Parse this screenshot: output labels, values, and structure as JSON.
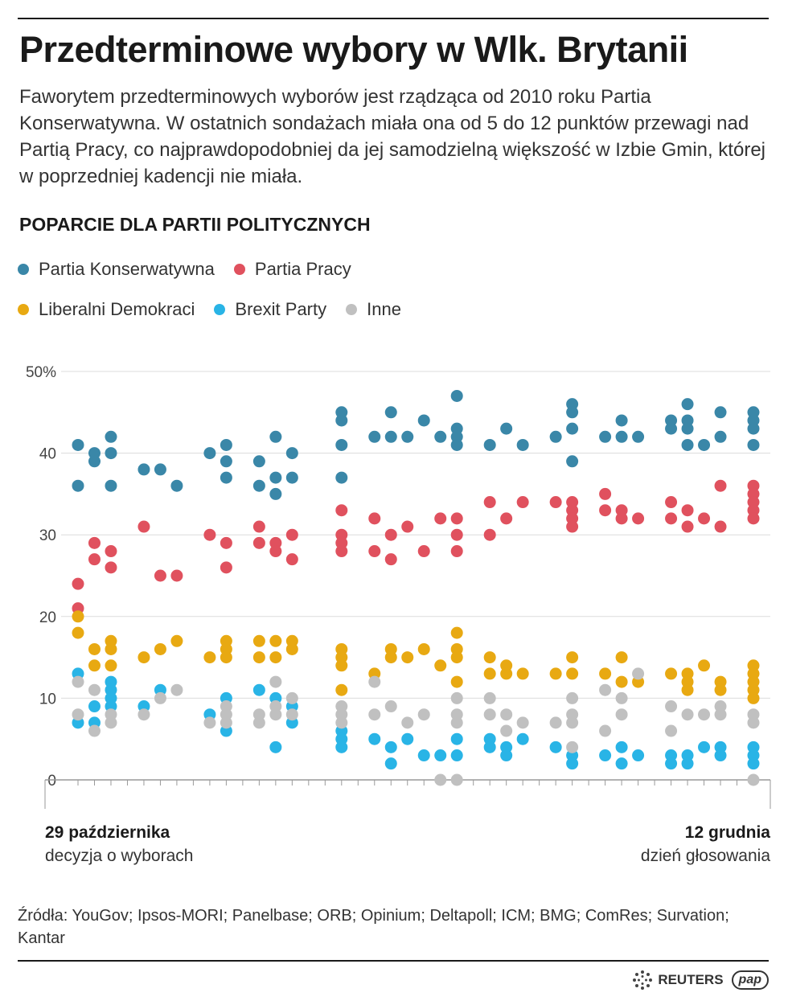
{
  "header": {
    "title": "Przedterminowe wybory w Wlk. Brytanii",
    "lead": "Faworytem przedterminowych wyborów jest rządząca od 2010 roku Partia Konserwatywna. W ostatnich sondażach miała ona od 5 do 12 punktów przewagi nad Partią Pracy, co najprawdopodobniej da jej samodzielną większość w Izbie Gmin, której w poprzedniej kadencji nie miała."
  },
  "colors": {
    "con": "#3a87a8",
    "lab": "#e0515e",
    "ld": "#e8a912",
    "brx": "#29b4e6",
    "oth": "#c0c0c0"
  },
  "chart_data": {
    "type": "scatter",
    "title": "POPARCIE DLA PARTII POLITYCZNYCH",
    "xlabel": "",
    "ylabel": "%",
    "ylim": [
      0,
      50
    ],
    "yticks": [
      "0",
      "10",
      "20",
      "30",
      "40",
      "50%"
    ],
    "grid": true,
    "legend_position": "top-left",
    "series_order": [
      "con",
      "lab",
      "ld",
      "brx",
      "oth"
    ],
    "legend": [
      {
        "key": "con",
        "label": "Partia Konserwatywna"
      },
      {
        "key": "lab",
        "label": "Partia Pracy"
      },
      {
        "key": "ld",
        "label": "Liberalni Demokraci"
      },
      {
        "key": "brx",
        "label": "Brexit Party"
      },
      {
        "key": "oth",
        "label": "Inne"
      }
    ],
    "x_start_label": "29 października",
    "x_start_note": "decyzja o wyborach",
    "x_end_label": "12 grudnia",
    "x_end_note": "dzień głosowania",
    "day_count": 43,
    "days": [
      {
        "day": 2,
        "con": [
          41,
          36
        ],
        "lab": [
          24,
          21
        ],
        "ld": [
          20,
          18
        ],
        "brx": [
          13,
          7
        ],
        "oth": [
          12,
          8
        ]
      },
      {
        "day": 3,
        "con": [
          40,
          39
        ],
        "lab": [
          29,
          27
        ],
        "ld": [
          16,
          14
        ],
        "brx": [
          9,
          7
        ],
        "oth": [
          11,
          6
        ]
      },
      {
        "day": 4,
        "con": [
          42,
          40,
          36
        ],
        "lab": [
          28,
          26
        ],
        "ld": [
          17,
          16,
          14
        ],
        "brx": [
          12,
          11,
          10,
          9
        ],
        "oth": [
          8,
          7
        ]
      },
      {
        "day": 6,
        "con": [
          38
        ],
        "lab": [
          31
        ],
        "ld": [
          15
        ],
        "brx": [
          9
        ],
        "oth": [
          8
        ]
      },
      {
        "day": 7,
        "con": [
          38
        ],
        "lab": [
          25
        ],
        "ld": [
          16
        ],
        "brx": [
          11
        ],
        "oth": [
          10
        ]
      },
      {
        "day": 8,
        "con": [
          36
        ],
        "lab": [
          25
        ],
        "ld": [
          17
        ],
        "brx": [],
        "oth": [
          11
        ]
      },
      {
        "day": 10,
        "con": [
          40
        ],
        "lab": [
          30
        ],
        "ld": [
          15
        ],
        "brx": [
          8
        ],
        "oth": [
          7
        ]
      },
      {
        "day": 11,
        "con": [
          41,
          39,
          37
        ],
        "lab": [
          29,
          26
        ],
        "ld": [
          17,
          16,
          15
        ],
        "brx": [
          10,
          6
        ],
        "oth": [
          9,
          8,
          7
        ]
      },
      {
        "day": 13,
        "con": [
          39,
          36
        ],
        "lab": [
          31,
          29
        ],
        "ld": [
          17,
          15
        ],
        "brx": [
          11
        ],
        "oth": [
          8,
          7
        ]
      },
      {
        "day": 14,
        "con": [
          42,
          37,
          35
        ],
        "lab": [
          29,
          28
        ],
        "ld": [
          17,
          15
        ],
        "brx": [
          10,
          4
        ],
        "oth": [
          12,
          9,
          8
        ]
      },
      {
        "day": 15,
        "con": [
          40,
          37
        ],
        "lab": [
          30,
          27
        ],
        "ld": [
          17,
          16
        ],
        "brx": [
          9,
          7
        ],
        "oth": [
          10,
          8
        ]
      },
      {
        "day": 18,
        "con": [
          45,
          44,
          41,
          37
        ],
        "lab": [
          33,
          30,
          29,
          28
        ],
        "ld": [
          16,
          15,
          14,
          11
        ],
        "brx": [
          6,
          5,
          4
        ],
        "oth": [
          9,
          8,
          7
        ]
      },
      {
        "day": 20,
        "con": [
          42
        ],
        "lab": [
          32,
          28
        ],
        "ld": [
          13
        ],
        "brx": [
          5
        ],
        "oth": [
          12,
          8
        ]
      },
      {
        "day": 21,
        "con": [
          45,
          42
        ],
        "lab": [
          30,
          27
        ],
        "ld": [
          16,
          15
        ],
        "brx": [
          4,
          2
        ],
        "oth": [
          9
        ]
      },
      {
        "day": 22,
        "con": [
          42
        ],
        "lab": [
          31
        ],
        "ld": [
          15
        ],
        "brx": [
          5
        ],
        "oth": [
          7
        ]
      },
      {
        "day": 23,
        "con": [
          44
        ],
        "lab": [
          28
        ],
        "ld": [
          16
        ],
        "brx": [
          3
        ],
        "oth": [
          8
        ]
      },
      {
        "day": 24,
        "con": [
          42
        ],
        "lab": [
          32
        ],
        "ld": [
          14
        ],
        "brx": [
          3
        ],
        "oth": [
          0
        ]
      },
      {
        "day": 25,
        "con": [
          47,
          43,
          42,
          41
        ],
        "lab": [
          32,
          30,
          28
        ],
        "ld": [
          18,
          16,
          15,
          12
        ],
        "brx": [
          5,
          3
        ],
        "oth": [
          10,
          8,
          7,
          0
        ]
      },
      {
        "day": 27,
        "con": [
          41
        ],
        "lab": [
          34,
          30
        ],
        "ld": [
          15,
          13
        ],
        "brx": [
          5,
          4
        ],
        "oth": [
          10,
          8
        ]
      },
      {
        "day": 28,
        "con": [
          43
        ],
        "lab": [
          32
        ],
        "ld": [
          14,
          13
        ],
        "brx": [
          4,
          3
        ],
        "oth": [
          8,
          6
        ]
      },
      {
        "day": 29,
        "con": [
          41
        ],
        "lab": [
          34
        ],
        "ld": [
          13
        ],
        "brx": [
          5
        ],
        "oth": [
          7
        ]
      },
      {
        "day": 31,
        "con": [
          42
        ],
        "lab": [
          34
        ],
        "ld": [
          13
        ],
        "brx": [
          4
        ],
        "oth": [
          7
        ]
      },
      {
        "day": 32,
        "con": [
          46,
          45,
          43,
          39
        ],
        "lab": [
          34,
          33,
          32,
          31
        ],
        "ld": [
          15,
          13
        ],
        "brx": [
          3,
          2
        ],
        "oth": [
          10,
          8,
          7,
          4
        ]
      },
      {
        "day": 34,
        "con": [
          42
        ],
        "lab": [
          35,
          33
        ],
        "ld": [
          13
        ],
        "brx": [
          3
        ],
        "oth": [
          11,
          6
        ]
      },
      {
        "day": 35,
        "con": [
          44,
          42
        ],
        "lab": [
          33,
          32
        ],
        "ld": [
          15,
          12
        ],
        "brx": [
          4,
          2
        ],
        "oth": [
          10,
          8
        ]
      },
      {
        "day": 36,
        "con": [
          42
        ],
        "lab": [
          32
        ],
        "ld": [
          12
        ],
        "brx": [
          3
        ],
        "oth": [
          13
        ]
      },
      {
        "day": 38,
        "con": [
          44,
          43
        ],
        "lab": [
          34,
          32
        ],
        "ld": [
          13
        ],
        "brx": [
          3,
          2
        ],
        "oth": [
          9,
          6
        ]
      },
      {
        "day": 39,
        "con": [
          46,
          44,
          43,
          41
        ],
        "lab": [
          33,
          31
        ],
        "ld": [
          13,
          12,
          11
        ],
        "brx": [
          3,
          2
        ],
        "oth": [
          8
        ]
      },
      {
        "day": 40,
        "con": [
          41
        ],
        "lab": [
          32
        ],
        "ld": [
          14
        ],
        "brx": [
          4
        ],
        "oth": [
          8
        ]
      },
      {
        "day": 41,
        "con": [
          45,
          42
        ],
        "lab": [
          36,
          31
        ],
        "ld": [
          12,
          11
        ],
        "brx": [
          4,
          3
        ],
        "oth": [
          9,
          8
        ]
      },
      {
        "day": 43,
        "con": [
          45,
          44,
          43,
          41
        ],
        "lab": [
          36,
          35,
          34,
          33,
          32
        ],
        "ld": [
          14,
          13,
          12,
          11,
          10
        ],
        "brx": [
          4,
          3,
          2
        ],
        "oth": [
          8,
          7,
          0
        ]
      }
    ]
  },
  "footer": {
    "sources": "Źródła: YouGov; Ipsos-MORI; Panelbase; ORB; Opinium; Deltapoll; ICM; BMG; ComRes; Survation; Kantar",
    "reuters": "REUTERS",
    "pap": "pap"
  }
}
